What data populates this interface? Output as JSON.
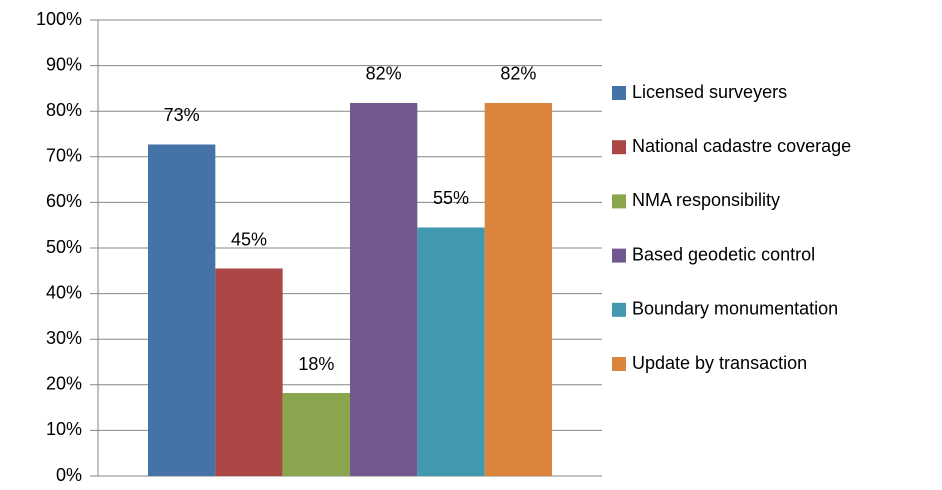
{
  "chart_data": {
    "type": "bar",
    "categories": [
      null
    ],
    "series": [
      {
        "name": "Licensed surveyers",
        "color": "#4572a7",
        "values": [
          72.7
        ],
        "value_labels": [
          "73%"
        ]
      },
      {
        "name": "National cadastre coverage",
        "color": "#aa4643",
        "values": [
          45.5
        ],
        "value_labels": [
          "45%"
        ]
      },
      {
        "name": "NMA responsibility",
        "color": "#89a54e",
        "values": [
          18.2
        ],
        "value_labels": [
          "18%"
        ]
      },
      {
        "name": "Based geodetic control",
        "color": "#71588f",
        "values": [
          81.8
        ],
        "value_labels": [
          "82%"
        ]
      },
      {
        "name": "Boundary monumentation",
        "color": "#4198af",
        "values": [
          54.5
        ],
        "value_labels": [
          "55%"
        ]
      },
      {
        "name": "Update by transaction",
        "color": "#db843d",
        "values": [
          81.8
        ],
        "value_labels": [
          "82%"
        ]
      }
    ],
    "ylim": [
      0,
      100
    ],
    "yticks": [
      {
        "value": 0,
        "label": "0%"
      },
      {
        "value": 10,
        "label": "10%"
      },
      {
        "value": 20,
        "label": "20%"
      },
      {
        "value": 30,
        "label": "30%"
      },
      {
        "value": 40,
        "label": "40%"
      },
      {
        "value": 50,
        "label": "50%"
      },
      {
        "value": 60,
        "label": "60%"
      },
      {
        "value": 70,
        "label": "70%"
      },
      {
        "value": 80,
        "label": "80%"
      },
      {
        "value": 90,
        "label": "90%"
      },
      {
        "value": 100,
        "label": "100%"
      }
    ],
    "grid": true,
    "legend": "right"
  }
}
